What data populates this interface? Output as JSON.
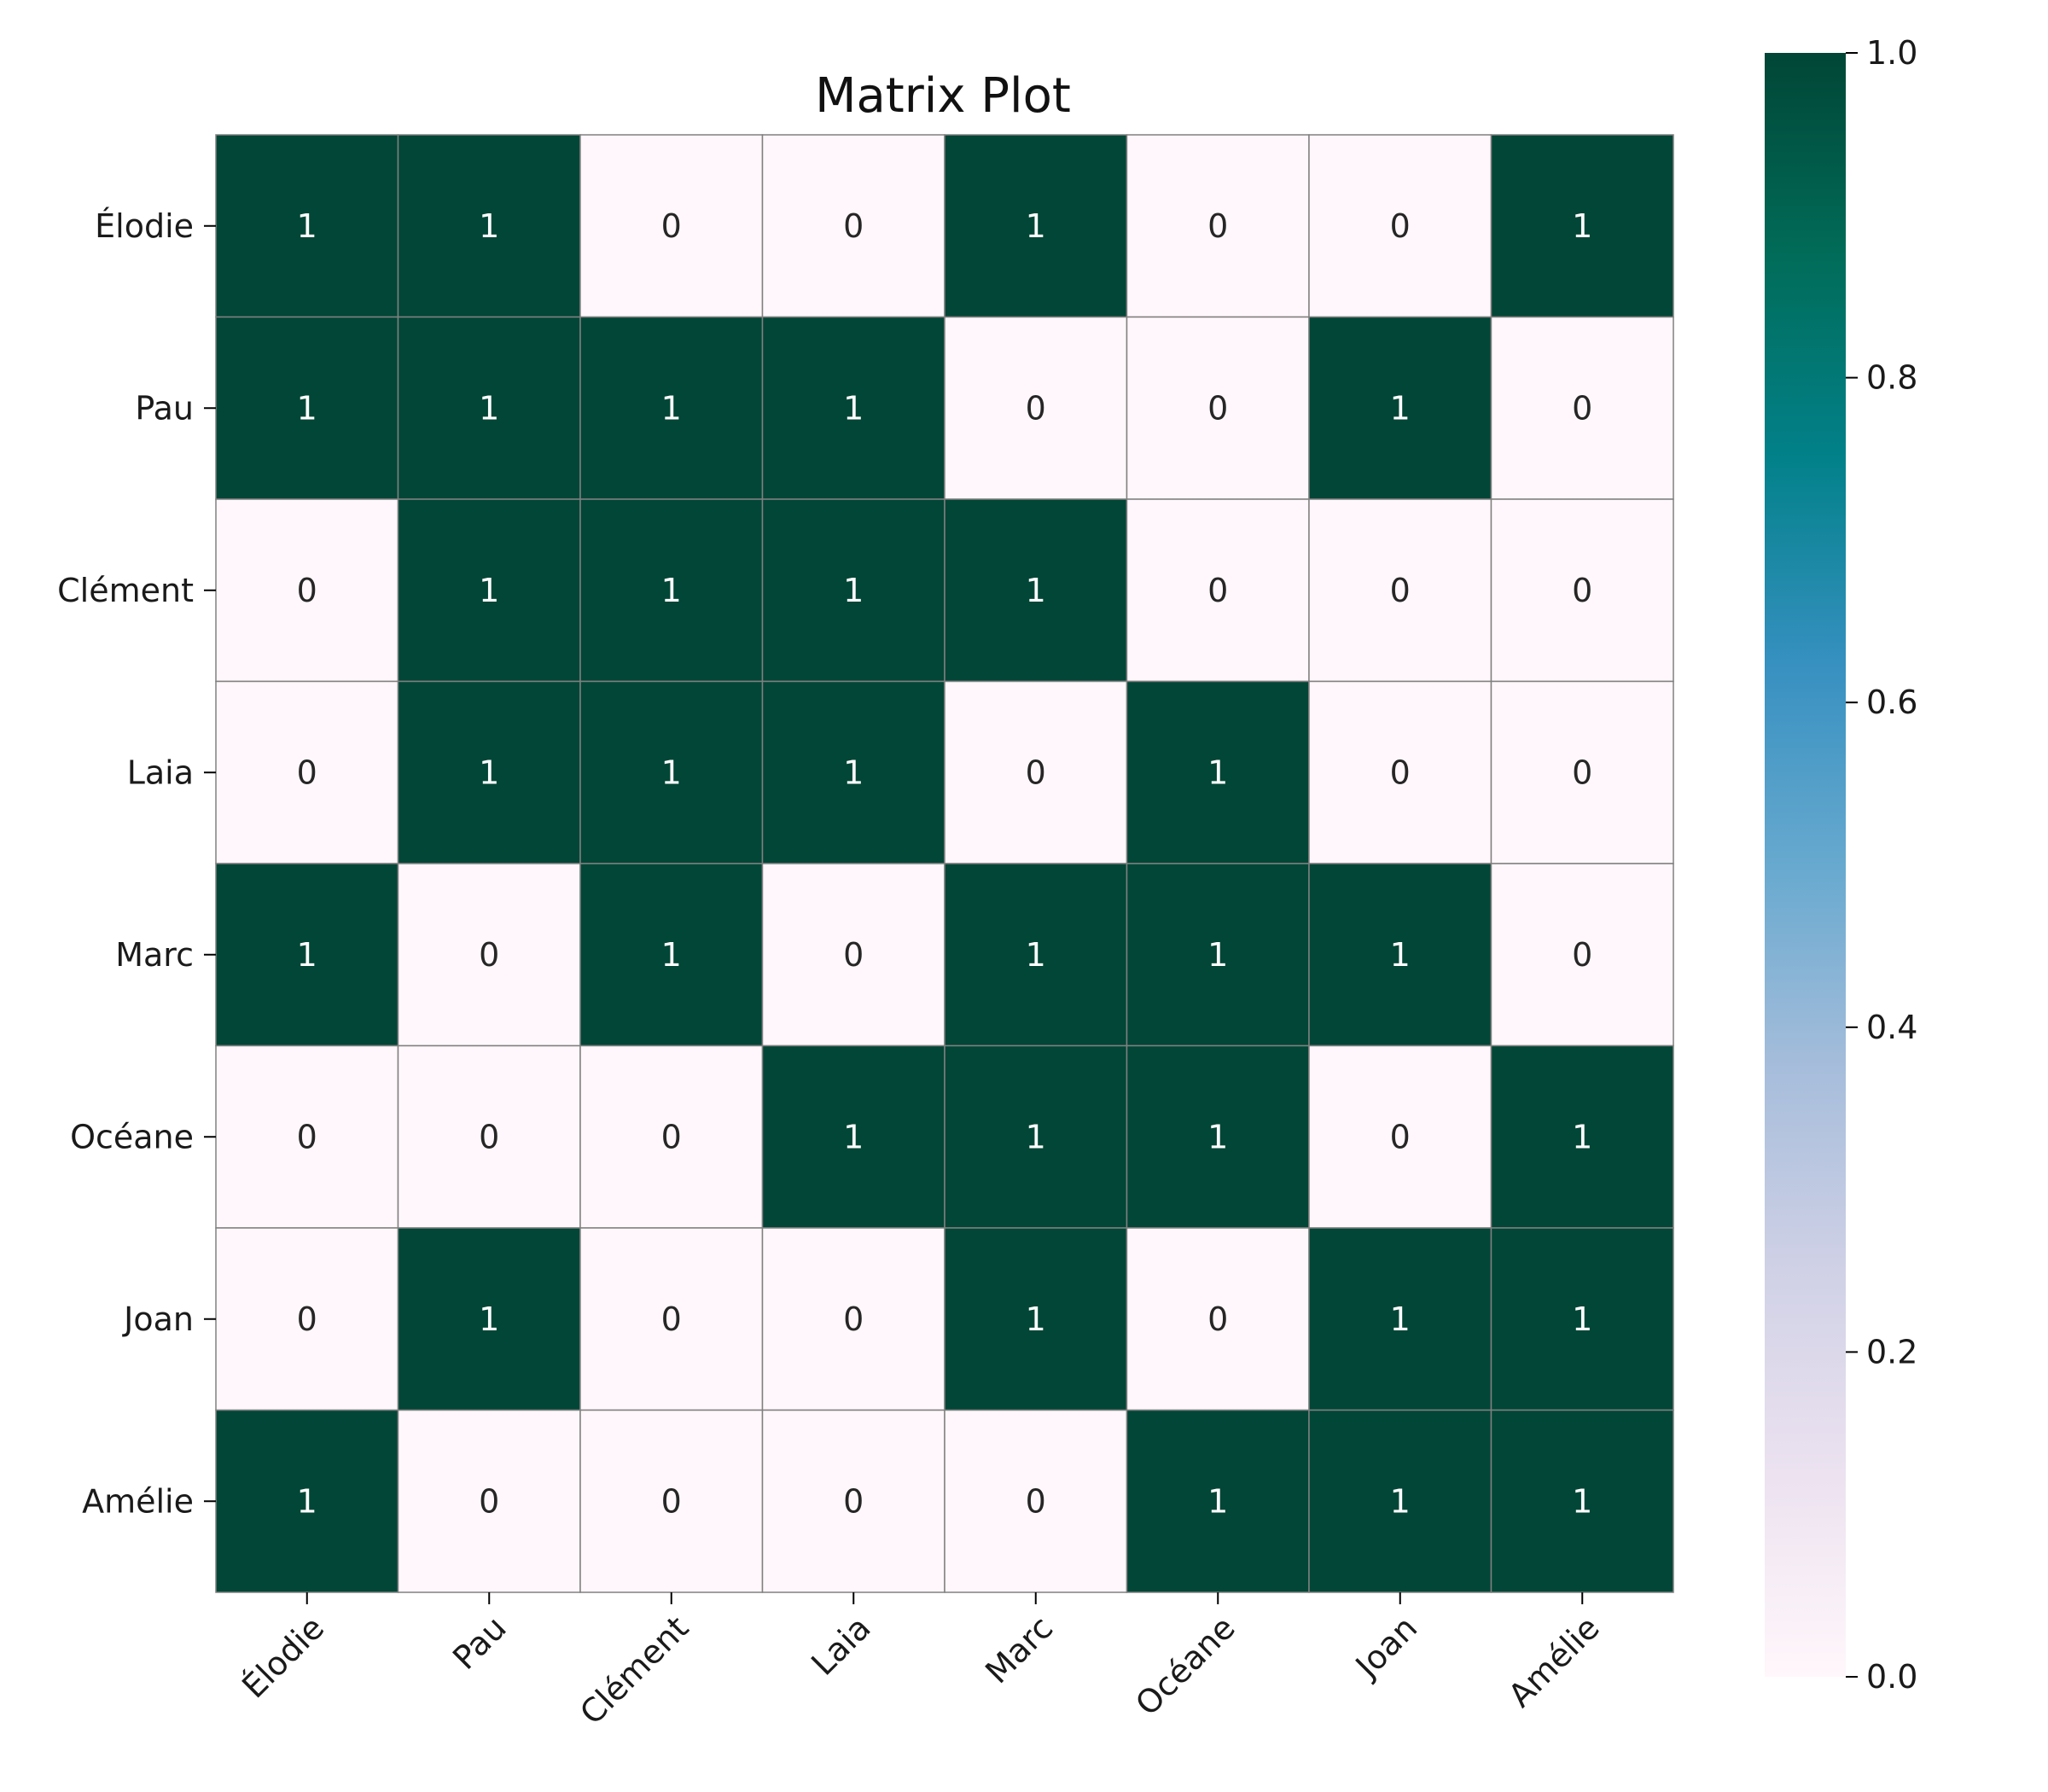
{
  "chart_data": {
    "type": "heatmap",
    "title": "Matrix Plot",
    "rows": [
      "Élodie",
      "Pau",
      "Clément",
      "Laia",
      "Marc",
      "Océane",
      "Joan",
      "Amélie"
    ],
    "columns": [
      "Élodie",
      "Pau",
      "Clément",
      "Laia",
      "Marc",
      "Océane",
      "Joan",
      "Amélie"
    ],
    "values": [
      [
        1,
        1,
        0,
        0,
        1,
        0,
        0,
        1
      ],
      [
        1,
        1,
        1,
        1,
        0,
        0,
        1,
        0
      ],
      [
        0,
        1,
        1,
        1,
        1,
        0,
        0,
        0
      ],
      [
        0,
        1,
        1,
        1,
        0,
        1,
        0,
        0
      ],
      [
        1,
        0,
        1,
        0,
        1,
        1,
        1,
        0
      ],
      [
        0,
        0,
        0,
        1,
        1,
        1,
        0,
        1
      ],
      [
        0,
        1,
        0,
        0,
        1,
        0,
        1,
        1
      ],
      [
        1,
        0,
        0,
        0,
        0,
        1,
        1,
        1
      ]
    ],
    "annotate": true,
    "colorbar": {
      "range": [
        0.0,
        1.0
      ],
      "ticks": [
        "0.0",
        "0.2",
        "0.4",
        "0.6",
        "0.8",
        "1.0"
      ],
      "colormap": "PuBuGn",
      "low_color": "#fff7fb",
      "high_color": "#014636"
    },
    "grid_line_color": "#808080"
  }
}
